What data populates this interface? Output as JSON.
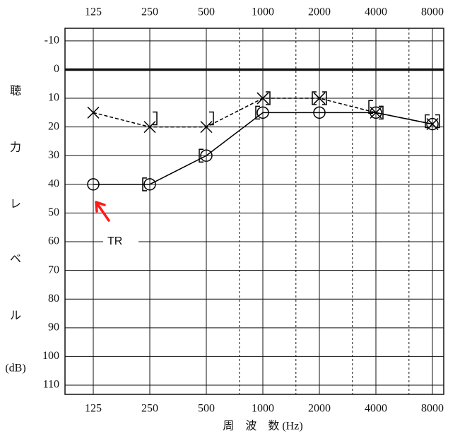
{
  "chart_data": {
    "type": "audiogram",
    "categories": [
      "125",
      "250",
      "500",
      "1000",
      "2000",
      "4000",
      "8000"
    ],
    "ylim": [
      -14.4,
      113.2
    ],
    "y_inverted": true,
    "yticks": [
      -10,
      0,
      10,
      20,
      30,
      40,
      50,
      60,
      70,
      80,
      90,
      100,
      110
    ],
    "grid": true,
    "ylabel": [
      "聴",
      "力",
      "レ",
      "ベ",
      "ル",
      "(dB)"
    ],
    "xlabel": "周　波　数 (Hz)",
    "annotation": {
      "text": "TR",
      "color": "#ff1a1a"
    },
    "series": [
      {
        "marker": "circle",
        "line": "solid",
        "color": "#000000",
        "values": [
          40,
          40,
          30,
          15,
          15,
          15,
          19
        ]
      },
      {
        "marker": "x",
        "line": "dashed",
        "color": "#000000",
        "values": [
          15,
          20,
          20,
          10,
          10,
          15,
          19
        ]
      },
      {
        "marker": "[",
        "line": "none",
        "color": "#000000",
        "values": [
          null,
          40,
          30,
          15,
          10,
          13,
          18
        ]
      },
      {
        "marker": "]",
        "line": "none",
        "color": "#000000",
        "values": [
          null,
          17,
          17,
          10,
          10,
          15,
          18
        ]
      }
    ]
  }
}
